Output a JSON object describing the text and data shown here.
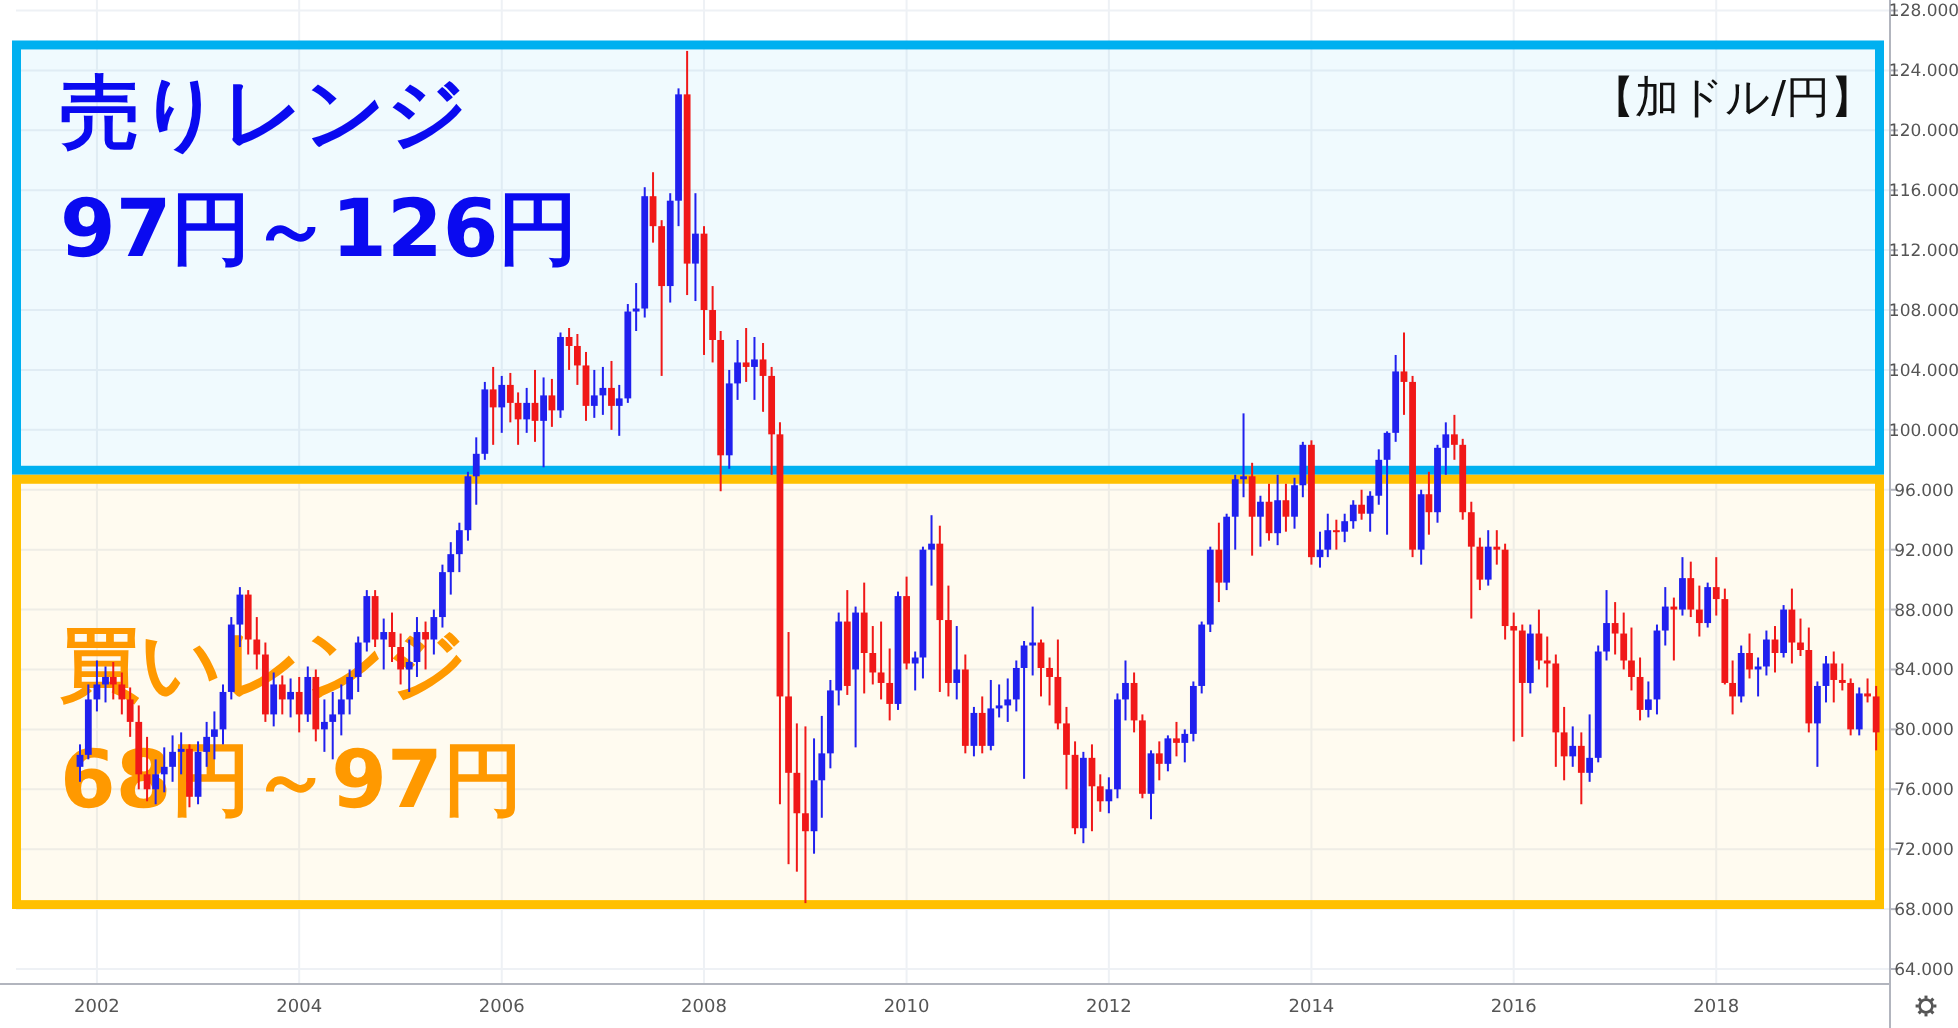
{
  "chart_data": {
    "type": "candlestick",
    "x": [
      "2001-11",
      "2001-12",
      "2002-01",
      "2002-02",
      "2002-03",
      "2002-04",
      "2002-05",
      "2002-06",
      "2002-07",
      "2002-08",
      "2002-09",
      "2002-10",
      "2002-11",
      "2002-12",
      "2003-01",
      "2003-02",
      "2003-03",
      "2003-04",
      "2003-05",
      "2003-06",
      "2003-07",
      "2003-08",
      "2003-09",
      "2003-10",
      "2003-11",
      "2003-12",
      "2004-01",
      "2004-02",
      "2004-03",
      "2004-04",
      "2004-05",
      "2004-06",
      "2004-07",
      "2004-08",
      "2004-09",
      "2004-10",
      "2004-11",
      "2004-12",
      "2005-01",
      "2005-02",
      "2005-03",
      "2005-04",
      "2005-05",
      "2005-06",
      "2005-07",
      "2005-08",
      "2005-09",
      "2005-10",
      "2005-11",
      "2005-12",
      "2006-01",
      "2006-02",
      "2006-03",
      "2006-04",
      "2006-05",
      "2006-06",
      "2006-07",
      "2006-08",
      "2006-09",
      "2006-10",
      "2006-11",
      "2006-12",
      "2007-01",
      "2007-02",
      "2007-03",
      "2007-04",
      "2007-05",
      "2007-06",
      "2007-07",
      "2007-08",
      "2007-09",
      "2007-10",
      "2007-11",
      "2007-12",
      "2008-01",
      "2008-02",
      "2008-03",
      "2008-04",
      "2008-05",
      "2008-06",
      "2008-07",
      "2008-08",
      "2008-09",
      "2008-10",
      "2008-11",
      "2008-12",
      "2009-01",
      "2009-02",
      "2009-03",
      "2009-04",
      "2009-05",
      "2009-06",
      "2009-07",
      "2009-08",
      "2009-09",
      "2009-10",
      "2009-11",
      "2009-12",
      "2010-01",
      "2010-02",
      "2010-03",
      "2010-04",
      "2010-05",
      "2010-06",
      "2010-07",
      "2010-08",
      "2010-09",
      "2010-10",
      "2010-11",
      "2010-12",
      "2011-01",
      "2011-02",
      "2011-03",
      "2011-04",
      "2011-05",
      "2011-06",
      "2011-07",
      "2011-08",
      "2011-09",
      "2011-10",
      "2011-11",
      "2011-12",
      "2012-01",
      "2012-02",
      "2012-03",
      "2012-04",
      "2012-05",
      "2012-06",
      "2012-07",
      "2012-08",
      "2012-09",
      "2012-10",
      "2012-11",
      "2012-12",
      "2013-01",
      "2013-02",
      "2013-03",
      "2013-04",
      "2013-05",
      "2013-06",
      "2013-07",
      "2013-08",
      "2013-09",
      "2013-10",
      "2013-11",
      "2013-12",
      "2014-01",
      "2014-02",
      "2014-03",
      "2014-04",
      "2014-05",
      "2014-06",
      "2014-07",
      "2014-08",
      "2014-09",
      "2014-10",
      "2014-11",
      "2014-12",
      "2015-01",
      "2015-02",
      "2015-03",
      "2015-04",
      "2015-05",
      "2015-06",
      "2015-07",
      "2015-08",
      "2015-09",
      "2015-10",
      "2015-11",
      "2015-12",
      "2016-01",
      "2016-02",
      "2016-03",
      "2016-04",
      "2016-05",
      "2016-06",
      "2016-07",
      "2016-08",
      "2016-09",
      "2016-10",
      "2016-11",
      "2016-12",
      "2017-01",
      "2017-02",
      "2017-03",
      "2017-04",
      "2017-05",
      "2017-06",
      "2017-07",
      "2017-08",
      "2017-09",
      "2017-10",
      "2017-11",
      "2017-12",
      "2018-01",
      "2018-02",
      "2018-03",
      "2018-04",
      "2018-05",
      "2018-06",
      "2018-07",
      "2018-08",
      "2018-09",
      "2018-10",
      "2018-11",
      "2018-12",
      "2019-01",
      "2019-02",
      "2019-03",
      "2019-04",
      "2019-05",
      "2019-06",
      "2019-07",
      "2019-08"
    ],
    "ohlc": [
      [
        77.5,
        79.0,
        76.5,
        78.3
      ],
      [
        78.3,
        83.0,
        78.0,
        82.0
      ],
      [
        82.0,
        84.6,
        81.2,
        83.0
      ],
      [
        83.0,
        84.2,
        81.8,
        83.5
      ],
      [
        83.5,
        84.5,
        82.0,
        83.0
      ],
      [
        83.0,
        83.8,
        81.0,
        82.0
      ],
      [
        82.0,
        82.8,
        79.5,
        80.5
      ],
      [
        80.5,
        81.6,
        76.0,
        77.0
      ],
      [
        77.0,
        79.5,
        75.2,
        76.0
      ],
      [
        76.0,
        78.0,
        75.0,
        77.0
      ],
      [
        77.0,
        78.8,
        75.8,
        77.5
      ],
      [
        77.5,
        79.6,
        76.5,
        78.5
      ],
      [
        78.5,
        79.8,
        77.0,
        78.7
      ],
      [
        78.7,
        79.0,
        74.8,
        75.5
      ],
      [
        75.5,
        79.2,
        75.0,
        78.5
      ],
      [
        78.5,
        80.5,
        77.5,
        79.5
      ],
      [
        79.5,
        81.2,
        78.0,
        80.0
      ],
      [
        80.0,
        83.0,
        79.0,
        82.5
      ],
      [
        82.5,
        87.5,
        82.0,
        87.0
      ],
      [
        87.0,
        89.5,
        85.5,
        89.0
      ],
      [
        89.0,
        89.3,
        85.0,
        86.0
      ],
      [
        86.0,
        87.5,
        84.0,
        85.0
      ],
      [
        85.0,
        85.8,
        80.5,
        81.0
      ],
      [
        81.0,
        83.8,
        80.2,
        83.0
      ],
      [
        83.0,
        83.6,
        81.0,
        82.0
      ],
      [
        82.0,
        83.4,
        80.8,
        82.5
      ],
      [
        82.5,
        83.5,
        79.8,
        81.0
      ],
      [
        81.0,
        84.2,
        80.5,
        83.5
      ],
      [
        83.5,
        84.0,
        79.2,
        80.0
      ],
      [
        80.0,
        82.0,
        78.5,
        80.5
      ],
      [
        80.5,
        82.5,
        78.0,
        81.0
      ],
      [
        81.0,
        83.0,
        79.6,
        82.0
      ],
      [
        82.0,
        84.0,
        81.0,
        83.5
      ],
      [
        83.5,
        86.2,
        82.5,
        85.8
      ],
      [
        85.8,
        89.3,
        85.2,
        88.9
      ],
      [
        88.9,
        89.3,
        85.5,
        86.0
      ],
      [
        86.0,
        87.4,
        84.0,
        86.5
      ],
      [
        86.5,
        87.8,
        84.5,
        85.5
      ],
      [
        85.5,
        86.4,
        83.0,
        84.0
      ],
      [
        84.0,
        86.0,
        82.5,
        84.5
      ],
      [
        84.5,
        87.5,
        83.5,
        86.5
      ],
      [
        86.5,
        87.2,
        84.0,
        86.0
      ],
      [
        86.0,
        88.0,
        85.0,
        87.5
      ],
      [
        87.5,
        91.0,
        86.8,
        90.5
      ],
      [
        90.5,
        92.5,
        89.0,
        91.7
      ],
      [
        91.7,
        93.8,
        90.5,
        93.3
      ],
      [
        93.3,
        97.2,
        92.6,
        96.9
      ],
      [
        96.9,
        99.5,
        95.0,
        98.4
      ],
      [
        98.4,
        103.2,
        98.0,
        102.7
      ],
      [
        102.7,
        104.2,
        99.0,
        101.5
      ],
      [
        101.5,
        103.6,
        99.8,
        103.0
      ],
      [
        103.0,
        103.8,
        100.5,
        101.8
      ],
      [
        101.8,
        102.5,
        99.0,
        100.7
      ],
      [
        100.7,
        102.8,
        99.8,
        101.8
      ],
      [
        101.8,
        104.0,
        99.2,
        100.6
      ],
      [
        100.6,
        103.5,
        97.5,
        102.3
      ],
      [
        102.3,
        103.4,
        100.2,
        101.3
      ],
      [
        101.3,
        106.5,
        100.8,
        106.2
      ],
      [
        106.2,
        106.8,
        104.0,
        105.6
      ],
      [
        105.6,
        106.4,
        103.0,
        104.3
      ],
      [
        104.3,
        105.2,
        100.6,
        101.6
      ],
      [
        101.6,
        104.0,
        100.8,
        102.3
      ],
      [
        102.3,
        104.2,
        101.0,
        102.8
      ],
      [
        102.8,
        104.6,
        100.0,
        101.6
      ],
      [
        101.6,
        103.0,
        99.6,
        102.1
      ],
      [
        102.1,
        108.4,
        101.8,
        107.9
      ],
      [
        107.9,
        109.8,
        106.6,
        108.1
      ],
      [
        108.1,
        116.2,
        107.5,
        115.6
      ],
      [
        115.6,
        117.2,
        112.5,
        113.6
      ],
      [
        113.6,
        114.0,
        103.6,
        109.6
      ],
      [
        109.6,
        115.8,
        108.5,
        115.3
      ],
      [
        115.3,
        122.8,
        113.6,
        122.4
      ],
      [
        122.4,
        125.3,
        109.0,
        111.1
      ],
      [
        111.1,
        115.8,
        108.6,
        113.1
      ],
      [
        113.1,
        113.6,
        105.0,
        108.0
      ],
      [
        108.0,
        109.6,
        104.5,
        106.0
      ],
      [
        106.0,
        106.6,
        95.9,
        98.3
      ],
      [
        98.3,
        104.0,
        97.4,
        103.1
      ],
      [
        103.1,
        106.0,
        102.0,
        104.5
      ],
      [
        104.5,
        106.8,
        103.2,
        104.2
      ],
      [
        104.2,
        106.2,
        102.0,
        104.7
      ],
      [
        104.7,
        105.8,
        101.2,
        103.6
      ],
      [
        103.6,
        104.2,
        97.0,
        99.7
      ],
      [
        99.7,
        100.5,
        75.0,
        82.2
      ],
      [
        82.2,
        86.5,
        71.0,
        77.1
      ],
      [
        77.1,
        80.4,
        70.5,
        74.4
      ],
      [
        74.4,
        80.2,
        68.4,
        73.2
      ],
      [
        73.2,
        79.4,
        71.7,
        76.6
      ],
      [
        76.6,
        80.9,
        74.1,
        78.4
      ],
      [
        78.4,
        83.3,
        77.4,
        82.6
      ],
      [
        82.6,
        87.8,
        81.6,
        87.2
      ],
      [
        87.2,
        89.3,
        82.3,
        82.9
      ],
      [
        84.0,
        88.2,
        78.8,
        87.8
      ],
      [
        87.8,
        89.8,
        82.4,
        85.1
      ],
      [
        85.1,
        86.9,
        83.0,
        83.8
      ],
      [
        83.8,
        87.2,
        82.0,
        83.1
      ],
      [
        83.1,
        85.4,
        80.6,
        81.7
      ],
      [
        81.7,
        89.2,
        81.3,
        88.9
      ],
      [
        88.9,
        90.2,
        84.0,
        84.4
      ],
      [
        84.4,
        85.2,
        82.6,
        84.8
      ],
      [
        84.8,
        92.2,
        83.4,
        92.0
      ],
      [
        92.0,
        94.3,
        89.6,
        92.4
      ],
      [
        92.4,
        93.6,
        82.5,
        87.3
      ],
      [
        87.3,
        89.6,
        82.2,
        83.1
      ],
      [
        83.1,
        86.9,
        82.0,
        84.0
      ],
      [
        84.0,
        85.0,
        78.4,
        78.9
      ],
      [
        78.9,
        81.5,
        78.2,
        81.1
      ],
      [
        81.1,
        82.2,
        78.4,
        78.9
      ],
      [
        78.9,
        83.3,
        78.6,
        81.4
      ],
      [
        81.4,
        83.0,
        80.8,
        81.6
      ],
      [
        81.6,
        83.4,
        80.5,
        82.0
      ],
      [
        82.0,
        84.6,
        81.2,
        84.1
      ],
      [
        84.1,
        85.9,
        76.7,
        85.6
      ],
      [
        85.6,
        88.2,
        83.6,
        85.8
      ],
      [
        85.8,
        86.0,
        82.2,
        84.1
      ],
      [
        84.1,
        84.8,
        81.6,
        83.5
      ],
      [
        83.5,
        86.0,
        80.0,
        80.4
      ],
      [
        80.4,
        81.5,
        76.0,
        78.3
      ],
      [
        78.3,
        79.2,
        73.0,
        73.4
      ],
      [
        73.4,
        78.5,
        72.4,
        78.1
      ],
      [
        78.1,
        79.0,
        73.2,
        76.2
      ],
      [
        76.2,
        77.0,
        74.5,
        75.2
      ],
      [
        75.2,
        76.8,
        74.4,
        76.0
      ],
      [
        76.0,
        82.4,
        75.4,
        82.0
      ],
      [
        82.0,
        84.6,
        80.6,
        83.1
      ],
      [
        83.1,
        83.8,
        79.8,
        80.6
      ],
      [
        80.6,
        81.0,
        75.4,
        75.7
      ],
      [
        75.7,
        78.6,
        74.0,
        78.4
      ],
      [
        78.4,
        79.2,
        76.6,
        77.7
      ],
      [
        77.7,
        79.6,
        77.2,
        79.4
      ],
      [
        79.4,
        80.5,
        78.2,
        79.1
      ],
      [
        79.1,
        80.0,
        77.8,
        79.7
      ],
      [
        79.7,
        83.2,
        79.2,
        82.9
      ],
      [
        82.9,
        87.2,
        82.4,
        87.0
      ],
      [
        87.0,
        92.2,
        86.5,
        92.0
      ],
      [
        92.0,
        93.8,
        88.5,
        89.8
      ],
      [
        89.8,
        94.4,
        89.3,
        94.2
      ],
      [
        94.2,
        97.0,
        92.0,
        96.7
      ],
      [
        96.7,
        101.1,
        95.5,
        96.9
      ],
      [
        96.9,
        97.8,
        91.6,
        94.2
      ],
      [
        94.2,
        95.6,
        92.2,
        95.2
      ],
      [
        95.2,
        96.4,
        92.6,
        93.1
      ],
      [
        93.1,
        97.0,
        92.3,
        95.3
      ],
      [
        95.3,
        96.4,
        93.2,
        94.2
      ],
      [
        94.2,
        96.8,
        93.4,
        96.3
      ],
      [
        96.3,
        99.2,
        95.5,
        99.0
      ],
      [
        99.0,
        99.3,
        91.0,
        91.5
      ],
      [
        91.5,
        93.2,
        90.8,
        92.0
      ],
      [
        92.0,
        94.4,
        91.5,
        93.3
      ],
      [
        93.3,
        94.0,
        92.0,
        93.2
      ],
      [
        93.2,
        94.4,
        92.5,
        93.9
      ],
      [
        93.9,
        95.3,
        93.4,
        95.0
      ],
      [
        95.0,
        96.0,
        94.0,
        94.4
      ],
      [
        94.4,
        95.9,
        93.2,
        95.6
      ],
      [
        95.6,
        98.7,
        95.0,
        98.0
      ],
      [
        98.0,
        99.9,
        93.0,
        99.8
      ],
      [
        99.8,
        105.0,
        99.2,
        103.9
      ],
      [
        103.9,
        106.5,
        101.0,
        103.2
      ],
      [
        103.2,
        103.6,
        91.5,
        92.0
      ],
      [
        92.0,
        96.0,
        91.0,
        95.7
      ],
      [
        95.7,
        97.2,
        93.0,
        94.5
      ],
      [
        94.5,
        99.0,
        93.8,
        98.8
      ],
      [
        98.8,
        100.5,
        97.0,
        99.7
      ],
      [
        99.7,
        101.0,
        98.0,
        99.0
      ],
      [
        99.0,
        99.4,
        94.0,
        94.5
      ],
      [
        94.5,
        95.2,
        87.4,
        92.2
      ],
      [
        92.2,
        92.8,
        89.3,
        90.0
      ],
      [
        90.0,
        93.3,
        89.6,
        92.2
      ],
      [
        92.2,
        93.3,
        91.0,
        92.0
      ],
      [
        92.0,
        92.4,
        86.0,
        86.9
      ],
      [
        86.9,
        87.8,
        79.2,
        86.6
      ],
      [
        86.6,
        87.0,
        79.5,
        83.1
      ],
      [
        83.1,
        87.0,
        82.4,
        86.4
      ],
      [
        86.4,
        88.0,
        84.0,
        84.6
      ],
      [
        84.6,
        86.2,
        82.8,
        84.4
      ],
      [
        84.4,
        85.0,
        77.5,
        79.8
      ],
      [
        79.8,
        81.5,
        76.6,
        78.2
      ],
      [
        78.2,
        80.2,
        77.5,
        78.9
      ],
      [
        78.9,
        79.8,
        75.0,
        77.1
      ],
      [
        77.1,
        81.0,
        76.5,
        78.1
      ],
      [
        78.1,
        85.6,
        77.8,
        85.2
      ],
      [
        85.2,
        89.3,
        84.6,
        87.1
      ],
      [
        87.1,
        88.5,
        85.0,
        86.4
      ],
      [
        86.4,
        87.8,
        84.0,
        84.6
      ],
      [
        84.6,
        86.8,
        82.6,
        83.5
      ],
      [
        83.5,
        84.8,
        80.6,
        81.3
      ],
      [
        81.3,
        83.2,
        80.8,
        82.0
      ],
      [
        82.0,
        87.0,
        81.0,
        86.6
      ],
      [
        86.6,
        89.5,
        85.6,
        88.2
      ],
      [
        88.2,
        88.8,
        84.6,
        88.0
      ],
      [
        88.0,
        91.5,
        87.6,
        90.1
      ],
      [
        90.1,
        91.2,
        87.5,
        88.0
      ],
      [
        88.0,
        89.6,
        86.2,
        87.1
      ],
      [
        87.1,
        89.8,
        86.8,
        89.5
      ],
      [
        89.5,
        91.5,
        87.6,
        88.7
      ],
      [
        88.7,
        89.4,
        83.0,
        83.1
      ],
      [
        83.1,
        84.6,
        81.0,
        82.2
      ],
      [
        82.2,
        85.6,
        81.8,
        85.1
      ],
      [
        85.1,
        86.4,
        83.4,
        84.0
      ],
      [
        84.0,
        84.8,
        82.2,
        84.2
      ],
      [
        84.2,
        86.6,
        83.6,
        86.0
      ],
      [
        86.0,
        86.9,
        83.8,
        85.1
      ],
      [
        85.1,
        88.3,
        84.8,
        88.0
      ],
      [
        88.0,
        89.4,
        84.4,
        85.8
      ],
      [
        85.8,
        87.4,
        84.9,
        85.3
      ],
      [
        85.3,
        86.8,
        79.8,
        80.4
      ],
      [
        80.4,
        83.2,
        77.5,
        82.9
      ],
      [
        82.9,
        84.9,
        81.8,
        84.4
      ],
      [
        84.4,
        85.2,
        81.8,
        83.3
      ],
      [
        83.3,
        84.4,
        82.6,
        83.1
      ],
      [
        83.1,
        83.4,
        79.6,
        80.0
      ],
      [
        80.0,
        82.8,
        79.6,
        82.4
      ],
      [
        82.4,
        83.4,
        81.8,
        82.2
      ],
      [
        82.2,
        82.9,
        78.6,
        79.8
      ]
    ],
    "xlim": [
      "2001-03-15",
      "2019-09-20"
    ],
    "xticks": [
      "2002",
      "2004",
      "2006",
      "2008",
      "2010",
      "2012",
      "2014",
      "2016",
      "2018"
    ],
    "ylim": [
      63,
      128.7
    ],
    "yticks": [
      {
        "value": 64,
        "label": "64.000"
      },
      {
        "value": 68,
        "label": "68.000"
      },
      {
        "value": 72,
        "label": "72.000"
      },
      {
        "value": 76,
        "label": "76.000"
      },
      {
        "value": 80,
        "label": "80.000"
      },
      {
        "value": 84,
        "label": "84.000"
      },
      {
        "value": 88,
        "label": "88.000"
      },
      {
        "value": 92,
        "label": "92.000"
      },
      {
        "value": 96,
        "label": "96.000"
      },
      {
        "value": 100,
        "label": "100.000"
      },
      {
        "value": 104,
        "label": "104.000"
      },
      {
        "value": 108,
        "label": "108.000"
      },
      {
        "value": 112,
        "label": "112.000"
      },
      {
        "value": 116,
        "label": "116.000"
      },
      {
        "value": 120,
        "label": "120.000"
      },
      {
        "value": 124,
        "label": "124.000"
      },
      {
        "value": 128,
        "label": "128.000"
      }
    ],
    "grid": true,
    "bands": [
      {
        "axis": "y",
        "from": 97,
        "to": 126,
        "label": "売りレンジ\n97円～126円",
        "color": "#00b0f0"
      },
      {
        "axis": "y",
        "from": 68,
        "to": 97,
        "label": "買いレンジ\n68円～97円",
        "color": "#ffc000"
      }
    ],
    "annotations": [
      "【加ドル/円】"
    ]
  }
}
